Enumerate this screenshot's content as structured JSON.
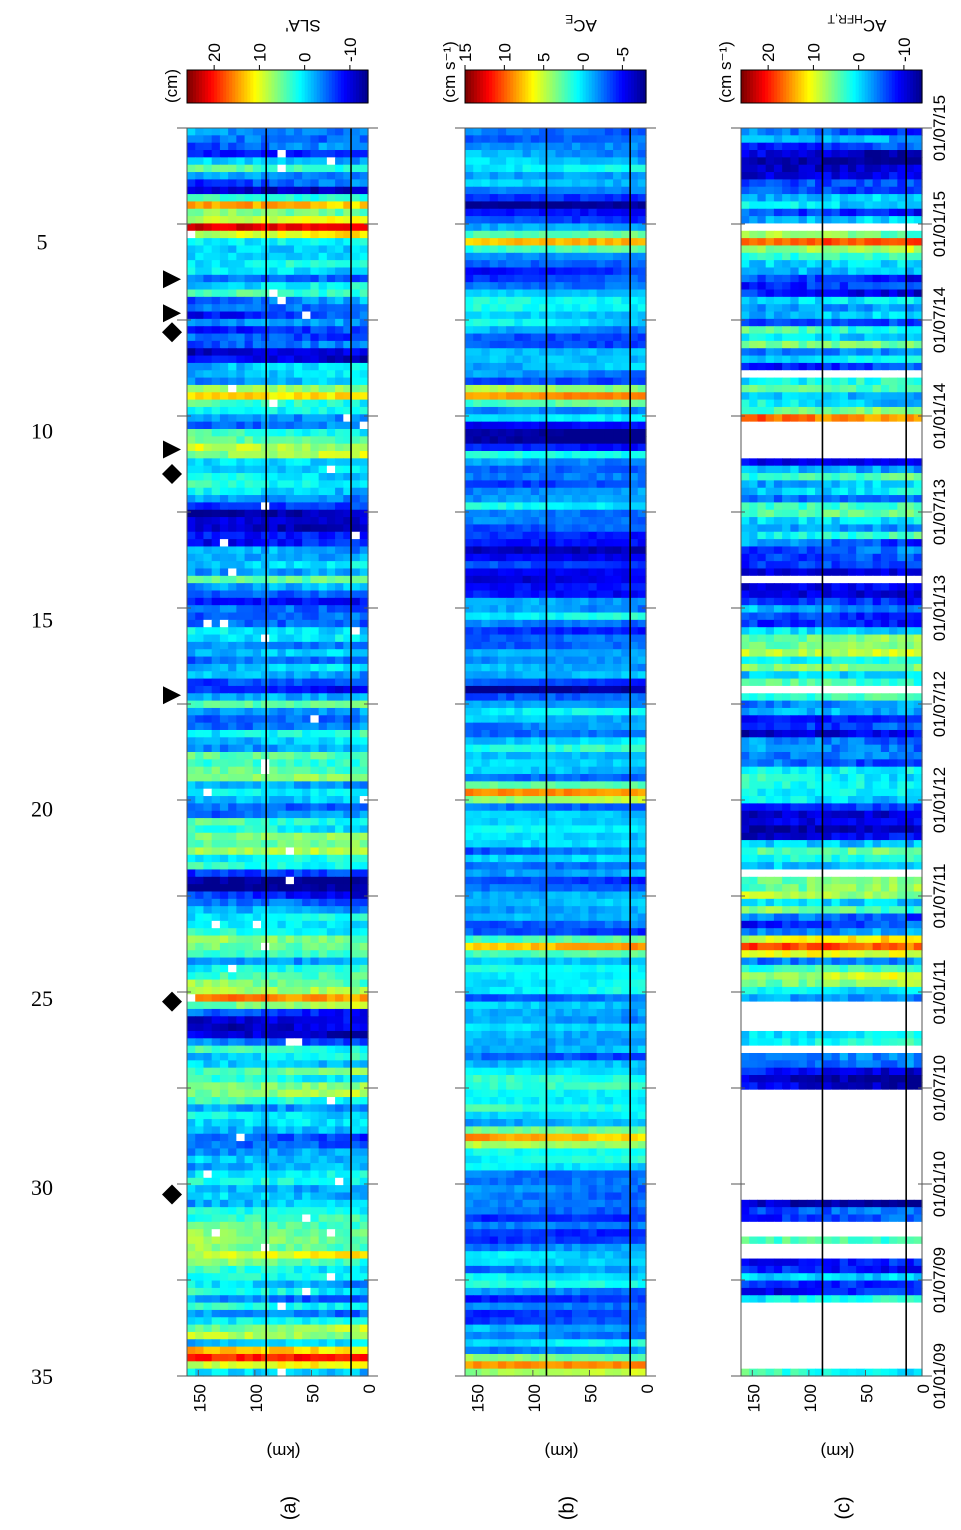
{
  "colors": {
    "jet": [
      "#00008f",
      "#0000ff",
      "#0080ff",
      "#00ffff",
      "#80ff80",
      "#ffff00",
      "#ff8000",
      "#ff0000",
      "#800000"
    ],
    "missing": "#ffffff",
    "line": "#000000"
  },
  "week_axis": {
    "ticks": [
      5,
      10,
      15,
      20,
      25,
      30,
      35
    ],
    "range": [
      2,
      35
    ]
  },
  "date_axis": {
    "labels": [
      "01/07/15",
      "01/01/15",
      "01/07/14",
      "01/01/14",
      "01/07/13",
      "01/01/13",
      "01/07/12",
      "01/01/12",
      "01/07/11",
      "01/01/11",
      "01/07/10",
      "01/01/10",
      "01/07/09",
      "01/01/09"
    ]
  },
  "markers": [
    {
      "shape": "triangle",
      "week": 6.0
    },
    {
      "shape": "triangle",
      "week": 6.9
    },
    {
      "shape": "diamond",
      "week": 7.4
    },
    {
      "shape": "triangle",
      "week": 10.5
    },
    {
      "shape": "diamond",
      "week": 11.15
    },
    {
      "shape": "triangle",
      "week": 17.0
    },
    {
      "shape": "diamond",
      "week": 25.1
    },
    {
      "shape": "diamond",
      "week": 30.2
    }
  ],
  "chart_data": [
    {
      "type": "heatmap",
      "panel_label": "(a)",
      "unit_label": "(cm)",
      "title": "SLA'",
      "ylabel": "(km)",
      "km_ticks": [
        "150",
        "100",
        "50",
        "0"
      ],
      "colorbar_ticks": [
        "20",
        "10",
        "0",
        "-10"
      ],
      "colorbar_range": [
        -14,
        26
      ],
      "km_lines": [
        90,
        15
      ],
      "seed": 11,
      "amp": 8,
      "bias": 0,
      "stripes": [
        {
          "t": 0.05,
          "v": -12
        },
        {
          "t": 0.063,
          "v": 14
        },
        {
          "t": 0.08,
          "v": 22
        },
        {
          "t": 0.18,
          "v": -12
        },
        {
          "t": 0.188,
          "v": -10
        },
        {
          "t": 0.215,
          "v": 12
        },
        {
          "t": 0.31,
          "v": -13
        },
        {
          "t": 0.32,
          "v": -12
        },
        {
          "t": 0.6,
          "v": -14
        },
        {
          "t": 0.61,
          "v": -14
        },
        {
          "t": 0.7,
          "v": 16
        },
        {
          "t": 0.905,
          "v": 10
        },
        {
          "t": 0.985,
          "v": 20
        }
      ]
    },
    {
      "type": "heatmap",
      "panel_label": "(b)",
      "unit_label": "(cm s⁻¹)",
      "title": "AC",
      "title_subscript": "E",
      "ylabel": "(km)",
      "km_ticks": [
        "150",
        "100",
        "50",
        "0"
      ],
      "colorbar_ticks": [
        "15",
        "10",
        "5",
        "0",
        "-5"
      ],
      "colorbar_range": [
        -8,
        15
      ],
      "km_lines": [
        88,
        14
      ],
      "seed": 23,
      "amp": 3,
      "bias": -1.5,
      "stripes": [
        {
          "t": 0.06,
          "v": -8
        },
        {
          "t": 0.09,
          "v": 8
        },
        {
          "t": 0.215,
          "v": 9
        },
        {
          "t": 0.245,
          "v": -8
        },
        {
          "t": 0.25,
          "v": -8
        },
        {
          "t": 0.34,
          "v": -7
        },
        {
          "t": 0.36,
          "v": -6
        },
        {
          "t": 0.45,
          "v": -8
        },
        {
          "t": 0.53,
          "v": 9
        },
        {
          "t": 0.655,
          "v": 8
        },
        {
          "t": 0.81,
          "v": 8
        },
        {
          "t": 0.99,
          "v": 9
        }
      ]
    },
    {
      "type": "heatmap",
      "panel_label": "(c)",
      "unit_label": "(cm s⁻¹)",
      "title": "AC",
      "title_subscript": "HFR,T",
      "ylabel": "(km)",
      "km_ticks": [
        "150",
        "100",
        "50",
        "0"
      ],
      "colorbar_ticks": [
        "20",
        "10",
        "0",
        "-10"
      ],
      "colorbar_range": [
        -14,
        26
      ],
      "km_lines": [
        88,
        14
      ],
      "seed": 37,
      "amp": 9,
      "bias": -2,
      "stripes": [
        {
          "t": 0.09,
          "v": 18
        },
        {
          "t": 0.23,
          "v": 16
        },
        {
          "t": 0.655,
          "v": 18
        },
        {
          "t": 0.81,
          "v": -14
        },
        {
          "t": 0.86,
          "v": -13
        }
      ],
      "gaps": [
        [
          0.074,
          0.081
        ],
        [
          0.193,
          0.199
        ],
        [
          0.234,
          0.262
        ],
        [
          0.36,
          0.365
        ],
        [
          0.447,
          0.454
        ],
        [
          0.447,
          0.452
        ],
        [
          0.595,
          0.602
        ],
        [
          0.701,
          0.725
        ],
        [
          0.736,
          0.741
        ],
        [
          0.757,
          0.76
        ],
        [
          0.773,
          0.858
        ],
        [
          0.878,
          0.888
        ],
        [
          0.893,
          0.906
        ],
        [
          0.94,
          0.992
        ]
      ]
    }
  ]
}
